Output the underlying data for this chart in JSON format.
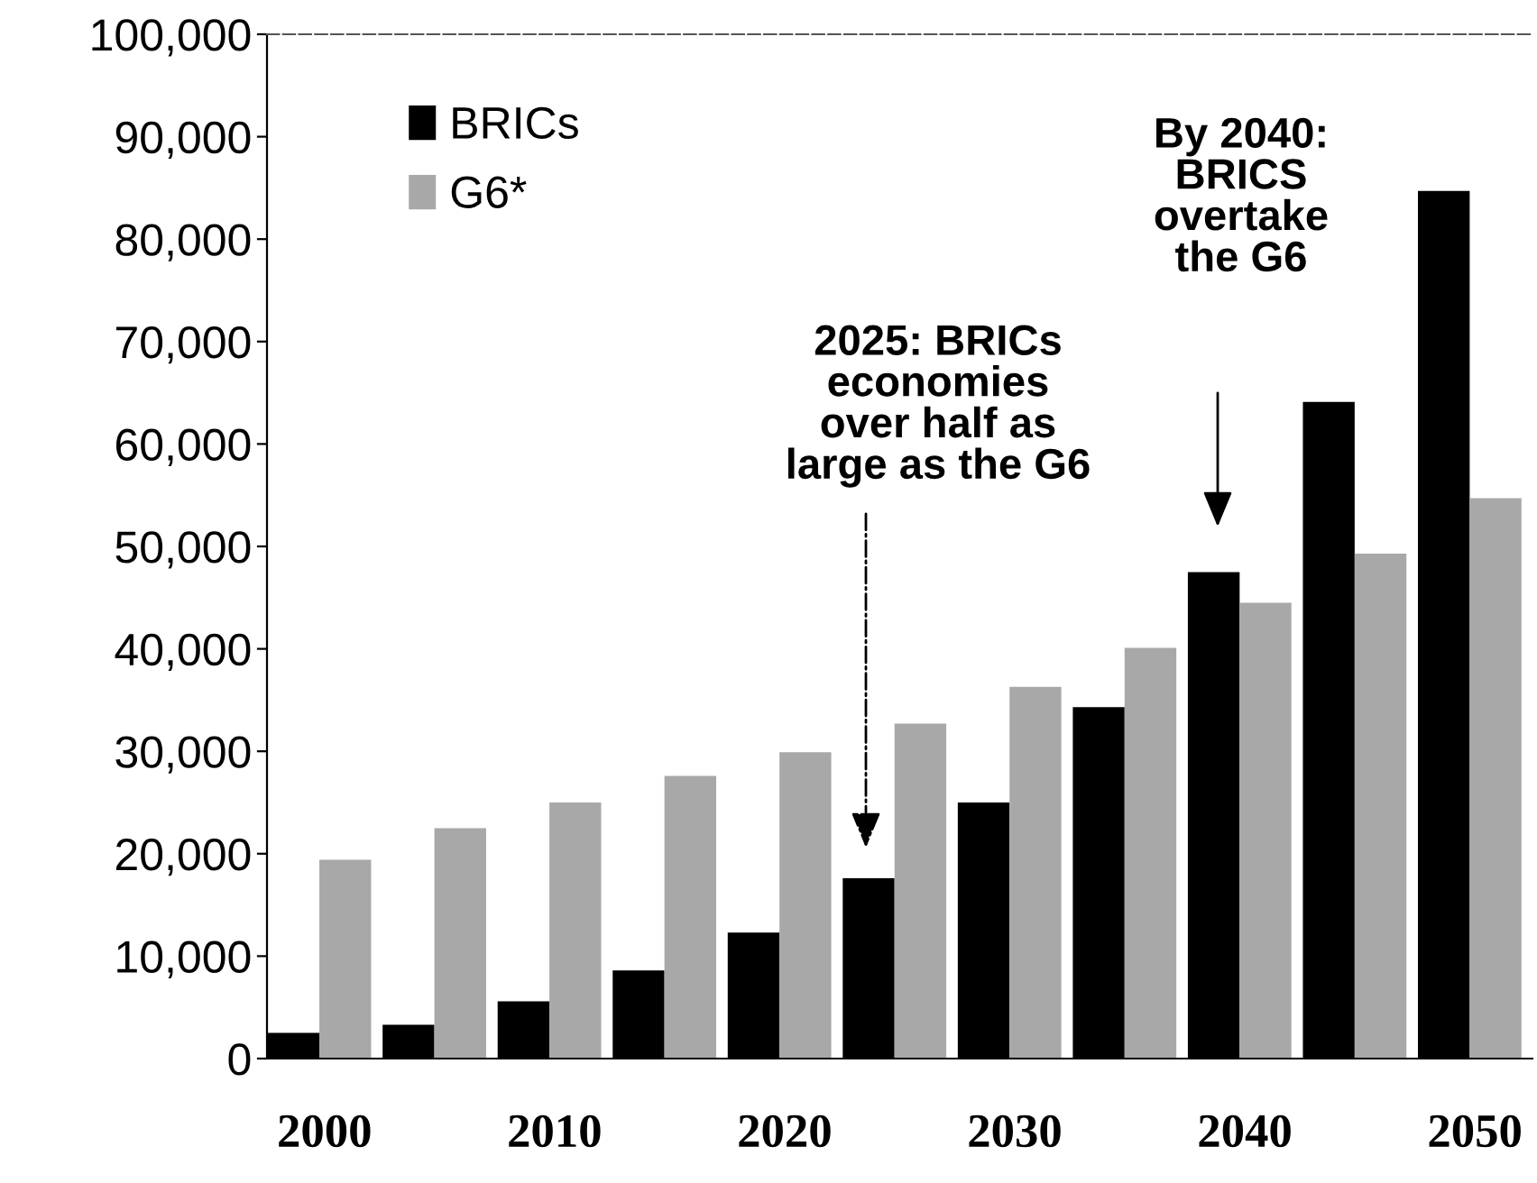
{
  "chart_data": {
    "type": "bar",
    "categories": [
      "2000",
      null,
      "2010",
      null,
      "2020",
      null,
      "2030",
      null,
      "2040",
      null,
      "2050"
    ],
    "series": [
      {
        "name": "BRICs",
        "color": "#000000",
        "values": [
          2500,
          3300,
          5600,
          8600,
          12300,
          17600,
          25000,
          34300,
          47500,
          64100,
          84700
        ]
      },
      {
        "name": "G6*",
        "color": "#a8a8a8",
        "values": [
          19400,
          22500,
          25000,
          27600,
          29900,
          32700,
          36300,
          40100,
          44500,
          49300,
          54700
        ]
      }
    ],
    "ylim": [
      0,
      100000
    ],
    "yticks": [
      0,
      {
        "value": 10000,
        "label": "10,000"
      },
      {
        "value": 20000,
        "label": "20,000"
      },
      {
        "value": 30000,
        "label": "30,000"
      },
      {
        "value": 40000,
        "label": "40,000"
      },
      {
        "value": 50000,
        "label": "50,000"
      },
      {
        "value": 60000,
        "label": "60,000"
      },
      {
        "value": 70000,
        "label": "70,000"
      },
      {
        "value": 80000,
        "label": "80,000"
      },
      {
        "value": 90000,
        "label": "90,000"
      },
      {
        "value": 100000,
        "label": "100,000"
      }
    ],
    "annotations": [
      "2025: BRICs\neconomies\nover half as\nlarge as the G6",
      "By 2040:\nBRICS\novertake\nthe G6"
    ],
    "legend": "top left",
    "grid": false
  }
}
